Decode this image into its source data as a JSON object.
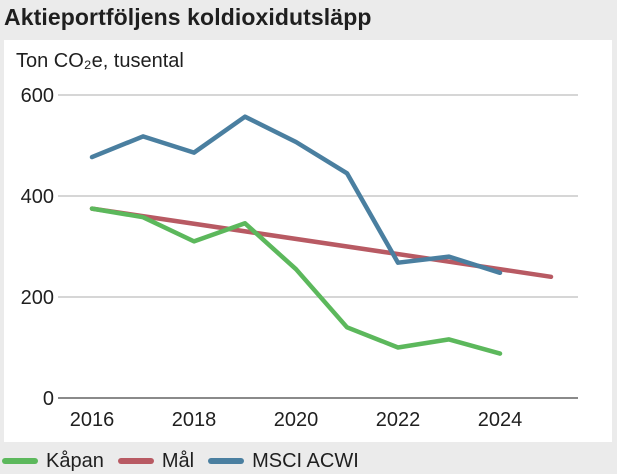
{
  "chart_data": {
    "type": "line",
    "title": "Aktieportföljens koldioxidutsläpp",
    "ylabel": "Ton CO₂e, tusental",
    "xlabel": "",
    "xlim": [
      2015.5,
      2025.5
    ],
    "ylim": [
      0,
      600
    ],
    "xticks": [
      2016,
      2018,
      2020,
      2022,
      2024
    ],
    "yticks": [
      0,
      200,
      400,
      600
    ],
    "grid": "horizontal",
    "legend_position": "bottom",
    "series": [
      {
        "name": "Kåpan",
        "color": "#5cb85c",
        "x": [
          2016,
          2017,
          2018,
          2019,
          2020,
          2021,
          2022,
          2023,
          2024
        ],
        "values": [
          375,
          358,
          310,
          346,
          255,
          140,
          100,
          116,
          88
        ]
      },
      {
        "name": "Mål",
        "color": "#b85a63",
        "x": [
          2016,
          2025
        ],
        "values": [
          375,
          240
        ]
      },
      {
        "name": "MSCI ACWI",
        "color": "#4a7fa0",
        "x": [
          2016,
          2017,
          2018,
          2019,
          2020,
          2021,
          2022,
          2023,
          2024
        ],
        "values": [
          477,
          518,
          486,
          557,
          507,
          445,
          268,
          280,
          248
        ]
      }
    ]
  }
}
